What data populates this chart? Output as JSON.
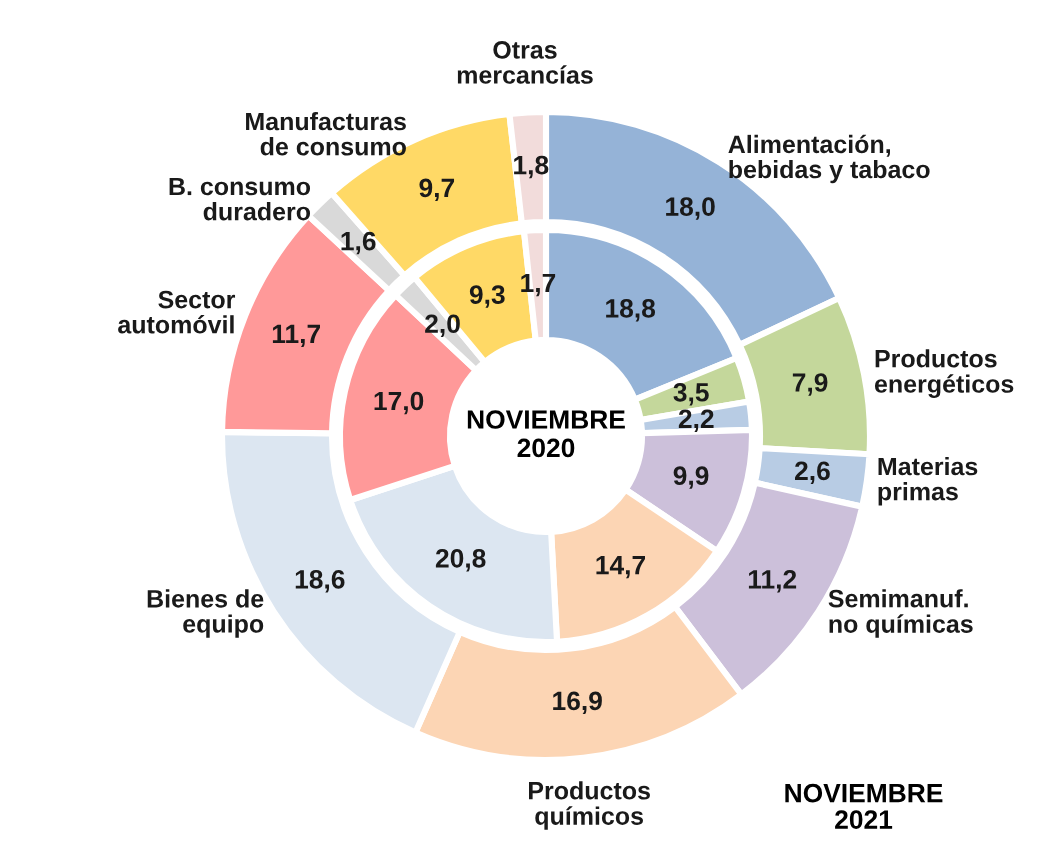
{
  "chart_data": {
    "type": "donut",
    "categories": [
      "Alimentación,\nbebidas y tabaco",
      "Productos\nenergéticos",
      "Materias\nprimas",
      "Semimanuf.\nno químicas",
      "Productos\nquímicos",
      "Bienes de\nequipo",
      "Sector\nautomóvil",
      "B. consumo\nduradero",
      "Manufacturas\nde consumo",
      "Otras\nmercancías"
    ],
    "colors": [
      "#95b3d7",
      "#c4d79b",
      "#b8cce4",
      "#ccc0da",
      "#fcd5b4",
      "#dce6f1",
      "#ff9999",
      "#d9d9d9",
      "#ffd966",
      "#f2dcdb"
    ],
    "series": [
      {
        "name": "NOVIEMBRE\n2021",
        "values": [
          18.0,
          7.9,
          2.6,
          11.2,
          16.9,
          18.6,
          11.7,
          1.6,
          9.7,
          1.8
        ],
        "value_labels": [
          "18,0",
          "7,9",
          "2,6",
          "11,2",
          "16,9",
          "18,6",
          "11,7",
          "1,6",
          "9,7",
          "1,8"
        ]
      },
      {
        "name": "NOVIEMBRE\n2020",
        "values": [
          18.8,
          3.5,
          2.2,
          9.9,
          14.7,
          20.8,
          17.0,
          2.0,
          9.3,
          1.7
        ],
        "value_labels": [
          "18,8",
          "3,5",
          "2,2",
          "9,9",
          "14,7",
          "20,8",
          "17,0",
          "2,0",
          "9,3",
          "1,7"
        ]
      }
    ]
  }
}
